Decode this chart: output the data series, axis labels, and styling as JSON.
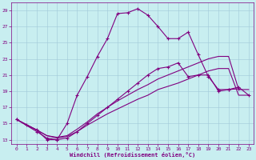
{
  "xlabel": "Windchill (Refroidissement éolien,°C)",
  "bg_color": "#c8eef0",
  "line_color": "#800080",
  "xlim": [
    -0.5,
    23.5
  ],
  "ylim": [
    12.5,
    30.0
  ],
  "yticks": [
    13,
    15,
    17,
    19,
    21,
    23,
    25,
    27,
    29
  ],
  "xticks": [
    0,
    1,
    2,
    3,
    4,
    5,
    6,
    7,
    8,
    9,
    10,
    11,
    12,
    13,
    14,
    15,
    16,
    17,
    18,
    19,
    20,
    21,
    22,
    23
  ],
  "line1_x": [
    0,
    1,
    2,
    3,
    4,
    5,
    6,
    7,
    8,
    9,
    10,
    11,
    12,
    13,
    14,
    15,
    16,
    17,
    18,
    19,
    20,
    21,
    22
  ],
  "line1_y": [
    15.5,
    14.8,
    14.2,
    13.0,
    13.0,
    15.0,
    18.5,
    20.8,
    23.3,
    25.5,
    28.6,
    28.7,
    29.2,
    28.4,
    27.0,
    25.5,
    25.5,
    26.3,
    23.5,
    20.8,
    19.2,
    19.2,
    19.3
  ],
  "line2_x": [
    0,
    2,
    3,
    4,
    5,
    6,
    7,
    8,
    9,
    10,
    11,
    12,
    13,
    14,
    15,
    16,
    17,
    18,
    19,
    20,
    21,
    22,
    23
  ],
  "line2_y": [
    15.5,
    14.0,
    13.2,
    13.0,
    13.2,
    14.0,
    15.0,
    16.0,
    17.0,
    18.0,
    19.0,
    20.0,
    21.0,
    21.8,
    22.0,
    22.5,
    20.8,
    21.0,
    21.0,
    19.0,
    19.2,
    19.5,
    18.5
  ],
  "line3_x": [
    0,
    2,
    3,
    4,
    5,
    6,
    7,
    8,
    9,
    10,
    11,
    12,
    13,
    14,
    15,
    16,
    17,
    18,
    19,
    20,
    21,
    22,
    23
  ],
  "line3_y": [
    15.5,
    14.2,
    13.5,
    13.3,
    13.5,
    14.3,
    15.2,
    16.2,
    17.0,
    17.8,
    18.5,
    19.2,
    19.8,
    20.5,
    21.0,
    21.5,
    22.0,
    22.5,
    23.0,
    23.3,
    23.3,
    19.2,
    19.2
  ],
  "line4_x": [
    0,
    2,
    3,
    4,
    5,
    6,
    7,
    8,
    9,
    10,
    11,
    12,
    13,
    14,
    15,
    16,
    17,
    18,
    19,
    20,
    21,
    22,
    23
  ],
  "line4_y": [
    15.5,
    14.2,
    13.5,
    13.2,
    13.4,
    14.0,
    14.8,
    15.5,
    16.2,
    16.8,
    17.4,
    18.0,
    18.5,
    19.2,
    19.6,
    20.0,
    20.5,
    21.0,
    21.5,
    21.8,
    21.8,
    18.5,
    18.5
  ]
}
